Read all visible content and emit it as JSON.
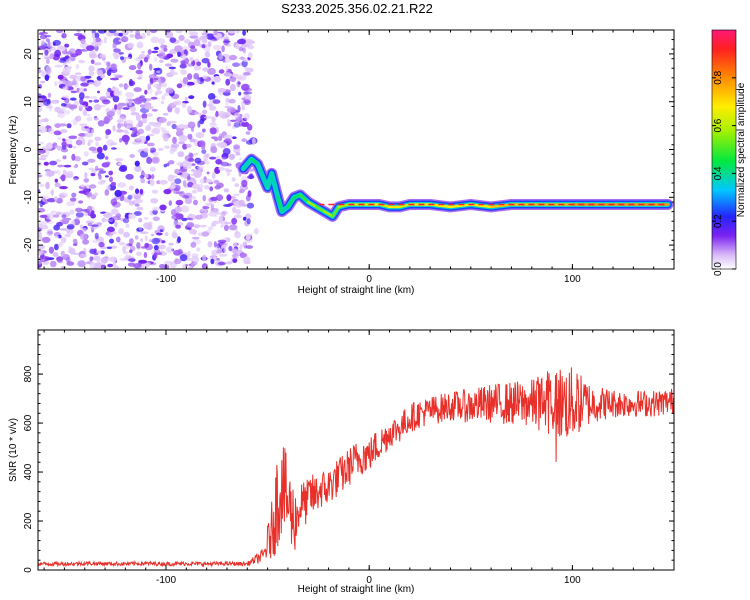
{
  "title": "S233.2025.356.02.21.R22",
  "chart_data": [
    {
      "type": "heatmap",
      "xlabel": "Height of straight line (km)",
      "ylabel": "Frequency (Hz)",
      "xlim": [
        -163,
        150
      ],
      "ylim": [
        -25,
        25
      ],
      "xticks": [
        "-100",
        "0",
        "100"
      ],
      "xtick_values": [
        -100,
        0,
        100
      ],
      "yticks": [
        "-20",
        "-10",
        "0",
        "10",
        "20"
      ],
      "ytick_values": [
        -20,
        -10,
        0,
        10,
        20
      ],
      "colorbar": {
        "label": "Normalized spectral amplitude",
        "range": [
          0,
          1
        ],
        "ticks": [
          "0.0",
          "0.2",
          "0.4",
          "0.6",
          "0.8"
        ],
        "tick_values": [
          0,
          0.2,
          0.4,
          0.6,
          0.8
        ],
        "colormap": "rainbow"
      },
      "noise_region_x": [
        -163,
        -58
      ],
      "ridge": {
        "x": [
          -62,
          -58,
          -55,
          -52,
          -50,
          -48,
          -45,
          -43,
          -40,
          -37,
          -34,
          -30,
          -26,
          -22,
          -18,
          -15,
          -10,
          -5,
          0,
          5,
          10,
          15,
          20,
          30,
          40,
          50,
          60,
          70,
          80,
          90,
          100,
          110,
          120,
          130,
          140,
          147
        ],
        "y": [
          -4,
          -2,
          -3,
          -6,
          -8,
          -5,
          -10,
          -13,
          -12,
          -10,
          -9.5,
          -11,
          -12,
          -13,
          -14,
          -12,
          -11.5,
          -11.5,
          -11.5,
          -11.5,
          -12,
          -12,
          -11.5,
          -11.5,
          -12,
          -11.5,
          -12,
          -11.5,
          -11.5,
          -11.5,
          -11.5,
          -11.5,
          -11.5,
          -11.5,
          -11.5,
          -11.5
        ],
        "amplitude": [
          0.3,
          0.35,
          0.3,
          0.3,
          0.3,
          0.3,
          0.35,
          0.3,
          0.35,
          0.35,
          0.4,
          0.5,
          0.45,
          0.5,
          0.45,
          0.5,
          0.55,
          0.55,
          0.6,
          0.55,
          0.6,
          0.55,
          0.6,
          0.6,
          0.6,
          0.6,
          0.65,
          0.65,
          0.65,
          0.65,
          0.7,
          0.7,
          0.7,
          0.7,
          0.7,
          0.7
        ]
      }
    },
    {
      "type": "line",
      "xlabel": "Height of straight line (km)",
      "ylabel": "SNR (10 * v/v)",
      "xlim": [
        -163,
        150
      ],
      "ylim": [
        0,
        980
      ],
      "xticks": [
        "-100",
        "0",
        "100"
      ],
      "xtick_values": [
        -100,
        0,
        100
      ],
      "yticks": [
        "0",
        "200",
        "400",
        "600",
        "800"
      ],
      "ytick_values": [
        0,
        200,
        400,
        600,
        800
      ],
      "series": [
        {
          "color": "#e8302a",
          "x": [
            -163,
            -150,
            -140,
            -130,
            -120,
            -110,
            -100,
            -90,
            -80,
            -70,
            -60,
            -52,
            -48,
            -45,
            -43,
            -41,
            -39,
            -37,
            -35,
            -33,
            -31,
            -29,
            -27,
            -24,
            -21,
            -18,
            -15,
            -12,
            -9,
            -6,
            -3,
            0,
            3,
            6,
            10,
            15,
            20,
            25,
            30,
            40,
            50,
            60,
            70,
            80,
            90,
            95,
            100,
            110,
            120,
            130,
            140,
            150
          ],
          "y": [
            25,
            25,
            27,
            26,
            25,
            27,
            25,
            26,
            25,
            26,
            25,
            60,
            160,
            300,
            350,
            300,
            250,
            200,
            230,
            280,
            270,
            310,
            300,
            330,
            330,
            360,
            380,
            400,
            430,
            450,
            470,
            470,
            500,
            520,
            560,
            580,
            620,
            640,
            650,
            670,
            670,
            680,
            680,
            680,
            690,
            680,
            680,
            680,
            680,
            680,
            680,
            690
          ],
          "noise": [
            8,
            8,
            8,
            8,
            8,
            8,
            8,
            8,
            8,
            8,
            8,
            30,
            120,
            220,
            200,
            180,
            170,
            150,
            90,
            90,
            90,
            90,
            90,
            80,
            80,
            80,
            80,
            80,
            80,
            80,
            80,
            70,
            70,
            70,
            60,
            60,
            60,
            60,
            60,
            60,
            70,
            80,
            90,
            100,
            140,
            160,
            150,
            80,
            60,
            55,
            55,
            55
          ]
        }
      ]
    }
  ]
}
